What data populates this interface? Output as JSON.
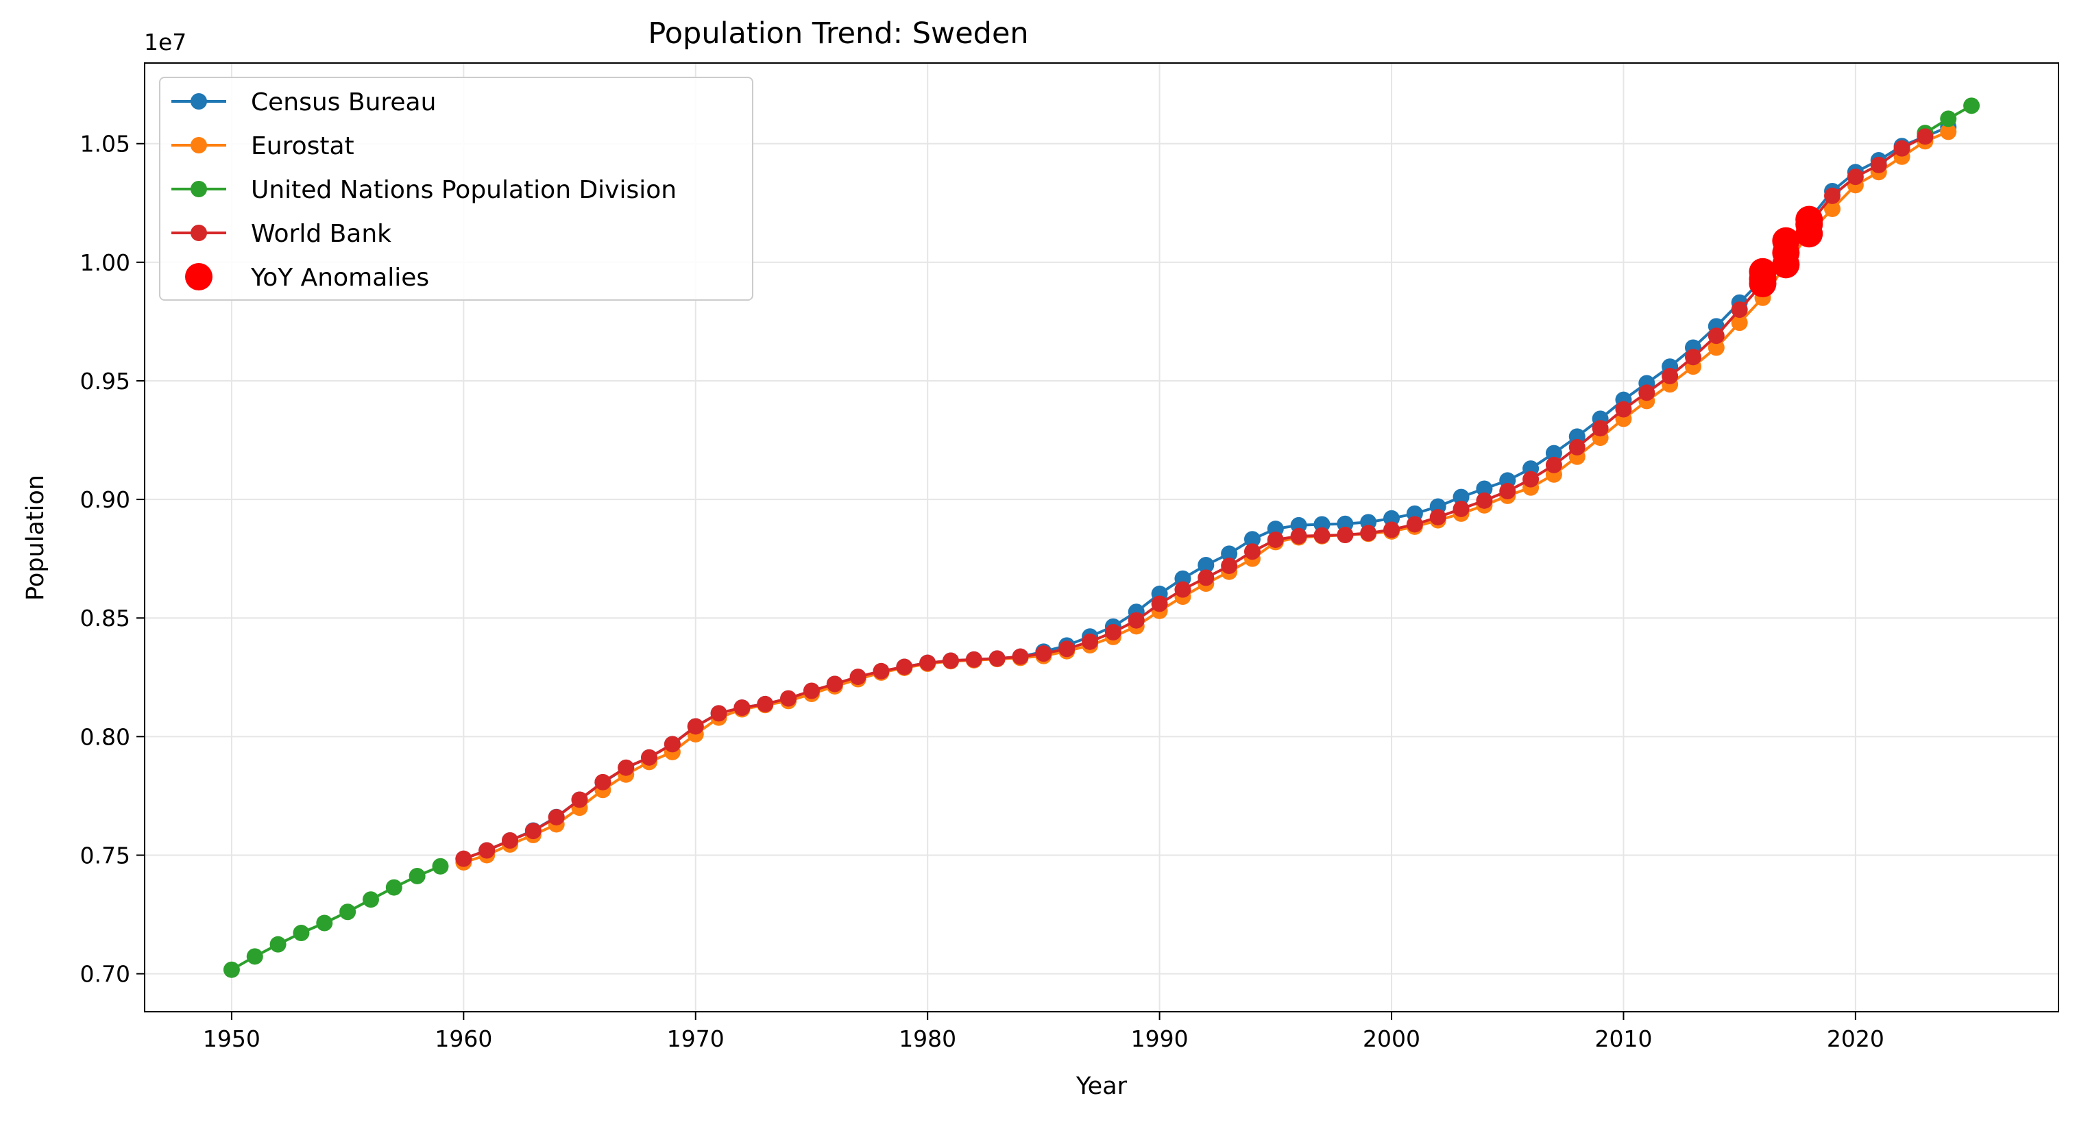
{
  "chart_data": {
    "type": "line",
    "title": "Population Trend: Sweden",
    "xlabel": "Year",
    "ylabel": "Population",
    "y_scale_label": "1e7",
    "y_scale": 10000000,
    "xlim": [
      1946.25,
      2028.75
    ],
    "ylim": [
      6840000.0,
      10840000.0
    ],
    "x_ticks": [
      1950,
      1960,
      1970,
      1980,
      1990,
      2000,
      2010,
      2020
    ],
    "y_ticks": [
      0.7,
      0.75,
      0.8,
      0.85,
      0.9,
      0.95,
      1.0,
      1.05
    ],
    "y_tick_labels": [
      "0.70",
      "0.75",
      "0.80",
      "0.85",
      "0.90",
      "0.95",
      "1.00",
      "1.05"
    ],
    "grid": true,
    "legend_position": "upper-left",
    "series": [
      {
        "name": "Census Bureau",
        "color": "#1f77b4",
        "x": [
          1960,
          1961,
          1962,
          1963,
          1964,
          1965,
          1966,
          1967,
          1968,
          1969,
          1970,
          1971,
          1972,
          1973,
          1974,
          1975,
          1976,
          1977,
          1978,
          1979,
          1980,
          1981,
          1982,
          1983,
          1984,
          1985,
          1986,
          1987,
          1988,
          1989,
          1990,
          1991,
          1992,
          1993,
          1994,
          1995,
          1996,
          1997,
          1998,
          1999,
          2000,
          2001,
          2002,
          2003,
          2004,
          2005,
          2006,
          2007,
          2008,
          2009,
          2010,
          2011,
          2012,
          2013,
          2014,
          2015,
          2016,
          2017,
          2018,
          2019,
          2020,
          2021,
          2022,
          2023,
          2024
        ],
        "y": [
          7484000,
          7520000,
          7562000,
          7604000,
          7661000,
          7734000,
          7807000,
          7868000,
          7912000,
          7968000,
          8043000,
          8098000,
          8122000,
          8137000,
          8160000,
          8192000,
          8222000,
          8251000,
          8275000,
          8294000,
          8311000,
          8320000,
          8325000,
          8329000,
          8337000,
          8358000,
          8384000,
          8422000,
          8464000,
          8526000,
          8602000,
          8666000,
          8723000,
          8771000,
          8832000,
          8876000,
          8891000,
          8895000,
          8897000,
          8904000,
          8920000,
          8940000,
          8970000,
          9010000,
          9045000,
          9080000,
          9130000,
          9195000,
          9265000,
          9340000,
          9420000,
          9490000,
          9560000,
          9640000,
          9730000,
          9830000,
          9930000,
          10050000,
          10180000,
          10300000,
          10380000,
          10430000,
          10490000,
          10530000,
          10570000
        ]
      },
      {
        "name": "Eurostat",
        "color": "#ff7f0e",
        "x": [
          1960,
          1961,
          1962,
          1963,
          1964,
          1965,
          1966,
          1967,
          1968,
          1969,
          1970,
          1971,
          1972,
          1973,
          1974,
          1975,
          1976,
          1977,
          1978,
          1979,
          1980,
          1981,
          1982,
          1983,
          1984,
          1985,
          1986,
          1987,
          1988,
          1989,
          1990,
          1991,
          1992,
          1993,
          1994,
          1995,
          1996,
          1997,
          1998,
          1999,
          2000,
          2001,
          2002,
          2003,
          2004,
          2005,
          2006,
          2007,
          2008,
          2009,
          2010,
          2011,
          2012,
          2013,
          2014,
          2015,
          2016,
          2017,
          2018,
          2019,
          2020,
          2021,
          2022,
          2023,
          2024
        ],
        "y": [
          7470000,
          7500000,
          7545000,
          7585000,
          7630000,
          7700000,
          7775000,
          7840000,
          7893000,
          7935000,
          8010000,
          8080000,
          8115000,
          8133000,
          8150000,
          8180000,
          8212000,
          8242000,
          8270000,
          8290000,
          8307000,
          8318000,
          8322000,
          8327000,
          8332000,
          8340000,
          8360000,
          8385000,
          8420000,
          8465000,
          8530000,
          8590000,
          8645000,
          8695000,
          8750000,
          8820000,
          8840000,
          8845000,
          8850000,
          8855000,
          8865000,
          8885000,
          8912000,
          8940000,
          8975000,
          9015000,
          9050000,
          9105000,
          9180000,
          9260000,
          9340000,
          9415000,
          9485000,
          9560000,
          9640000,
          9745000,
          9850000,
          9990000,
          10120000,
          10225000,
          10325000,
          10380000,
          10445000,
          10510000,
          10550000
        ]
      },
      {
        "name": "United Nations Population Division",
        "color": "#2ca02c",
        "x": [
          1950,
          1951,
          1952,
          1953,
          1954,
          1955,
          1956,
          1957,
          1958,
          1959,
          2023,
          2024,
          2025
        ],
        "y": [
          7017000,
          7073000,
          7124000,
          7172000,
          7214000,
          7261000,
          7313000,
          7364000,
          7412000,
          7453000,
          10545000,
          10605000,
          10660000
        ]
      },
      {
        "name": "World Bank",
        "color": "#d62728",
        "x": [
          1960,
          1961,
          1962,
          1963,
          1964,
          1965,
          1966,
          1967,
          1968,
          1969,
          1970,
          1971,
          1972,
          1973,
          1974,
          1975,
          1976,
          1977,
          1978,
          1979,
          1980,
          1981,
          1982,
          1983,
          1984,
          1985,
          1986,
          1987,
          1988,
          1989,
          1990,
          1991,
          1992,
          1993,
          1994,
          1995,
          1996,
          1997,
          1998,
          1999,
          2000,
          2001,
          2002,
          2003,
          2004,
          2005,
          2006,
          2007,
          2008,
          2009,
          2010,
          2011,
          2012,
          2013,
          2014,
          2015,
          2016,
          2017,
          2018,
          2019,
          2020,
          2021,
          2022,
          2023
        ],
        "y": [
          7485000,
          7520000,
          7562000,
          7602000,
          7660000,
          7734000,
          7808000,
          7869000,
          7912000,
          7968000,
          8043000,
          8098000,
          8122000,
          8137000,
          8161000,
          8193000,
          8222000,
          8252000,
          8276000,
          8294000,
          8311000,
          8320000,
          8325000,
          8329000,
          8337000,
          8350000,
          8370000,
          8400000,
          8440000,
          8490000,
          8560000,
          8620000,
          8670000,
          8720000,
          8780000,
          8830000,
          8845000,
          8848000,
          8850000,
          8858000,
          8872000,
          8895000,
          8925000,
          8960000,
          8995000,
          9035000,
          9085000,
          9145000,
          9220000,
          9300000,
          9380000,
          9450000,
          9520000,
          9600000,
          9690000,
          9800000,
          9910000,
          10040000,
          10160000,
          10280000,
          10360000,
          10410000,
          10480000,
          10530000
        ]
      },
      {
        "name": "YoY Anomalies",
        "color": "#ff0000",
        "type": "scatter",
        "x": [
          2016,
          2016,
          2016,
          2017,
          2017,
          2017,
          2018,
          2018,
          2018
        ],
        "y": [
          9930000,
          9960000,
          9910000,
          10090000,
          10040000,
          9990000,
          10180000,
          10160000,
          10120000
        ]
      }
    ]
  }
}
